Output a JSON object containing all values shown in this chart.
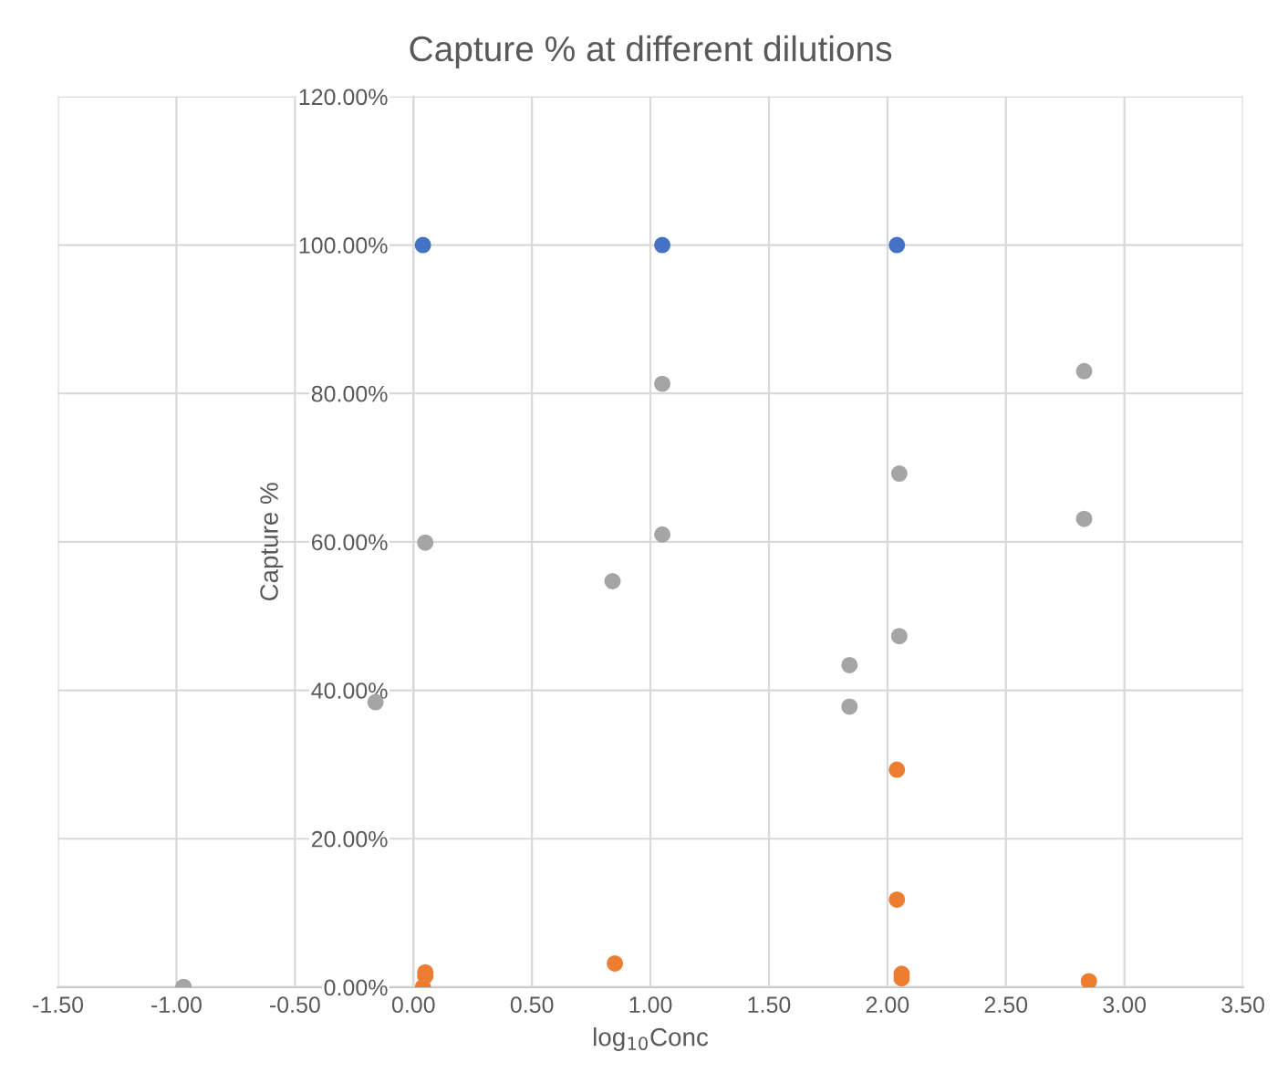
{
  "chart_data": {
    "type": "scatter",
    "title": "Capture % at different dilutions",
    "xlabel": "log$_{10}$Conc",
    "ylabel": "Capture %",
    "series": [
      {
        "color": "#4472c4",
        "x": [
          -0.97,
          0.04,
          1.05,
          2.04
        ],
        "values": [
          0,
          100,
          100,
          100
        ]
      },
      {
        "color": "#ed7d31",
        "x": [
          0.05,
          0.05,
          0.04,
          0.85,
          2.06,
          2.06,
          2.04,
          2.04,
          2.85
        ],
        "values": [
          2.0,
          1.5,
          0,
          3.2,
          1.8,
          1.2,
          11.8,
          29.3,
          0.8
        ]
      },
      {
        "color": "#a5a5a5",
        "x": [
          -0.97,
          -0.16,
          0.05,
          0.84,
          1.05,
          1.05,
          1.84,
          1.84,
          2.05,
          2.05,
          2.83,
          2.83
        ],
        "values": [
          0,
          38.4,
          59.9,
          54.7,
          61.0,
          81.3,
          37.8,
          43.4,
          47.3,
          69.2,
          63.1,
          83.0
        ]
      }
    ],
    "marker": "circle",
    "grid": true,
    "legend": false,
    "xlim": [
      -1.5,
      3.5
    ],
    "xticks": [
      {
        "value": -1.5,
        "label": "-1.50"
      },
      {
        "value": -1.0,
        "label": "-1.00"
      },
      {
        "value": -0.5,
        "label": "-0.50"
      },
      {
        "value": 0,
        "label": "0.00"
      },
      {
        "value": 0.5,
        "label": "0.50"
      },
      {
        "value": 1.0,
        "label": "1.00"
      },
      {
        "value": 1.5,
        "label": "1.50"
      },
      {
        "value": 2.0,
        "label": "2.00"
      },
      {
        "value": 2.5,
        "label": "2.50"
      },
      {
        "value": 3.0,
        "label": "3.00"
      },
      {
        "value": 3.5,
        "label": "3.50"
      }
    ],
    "ylim": [
      0,
      120
    ],
    "yticks": [
      {
        "value": 0,
        "label": "0.00%"
      },
      {
        "value": 20,
        "label": "20.00%"
      },
      {
        "value": 40,
        "label": "40.00%"
      },
      {
        "value": 60,
        "label": "60.00%"
      },
      {
        "value": 80,
        "label": "80.00%"
      },
      {
        "value": 100,
        "label": "100.00%"
      },
      {
        "value": 120,
        "label": "120.00%"
      }
    ]
  }
}
